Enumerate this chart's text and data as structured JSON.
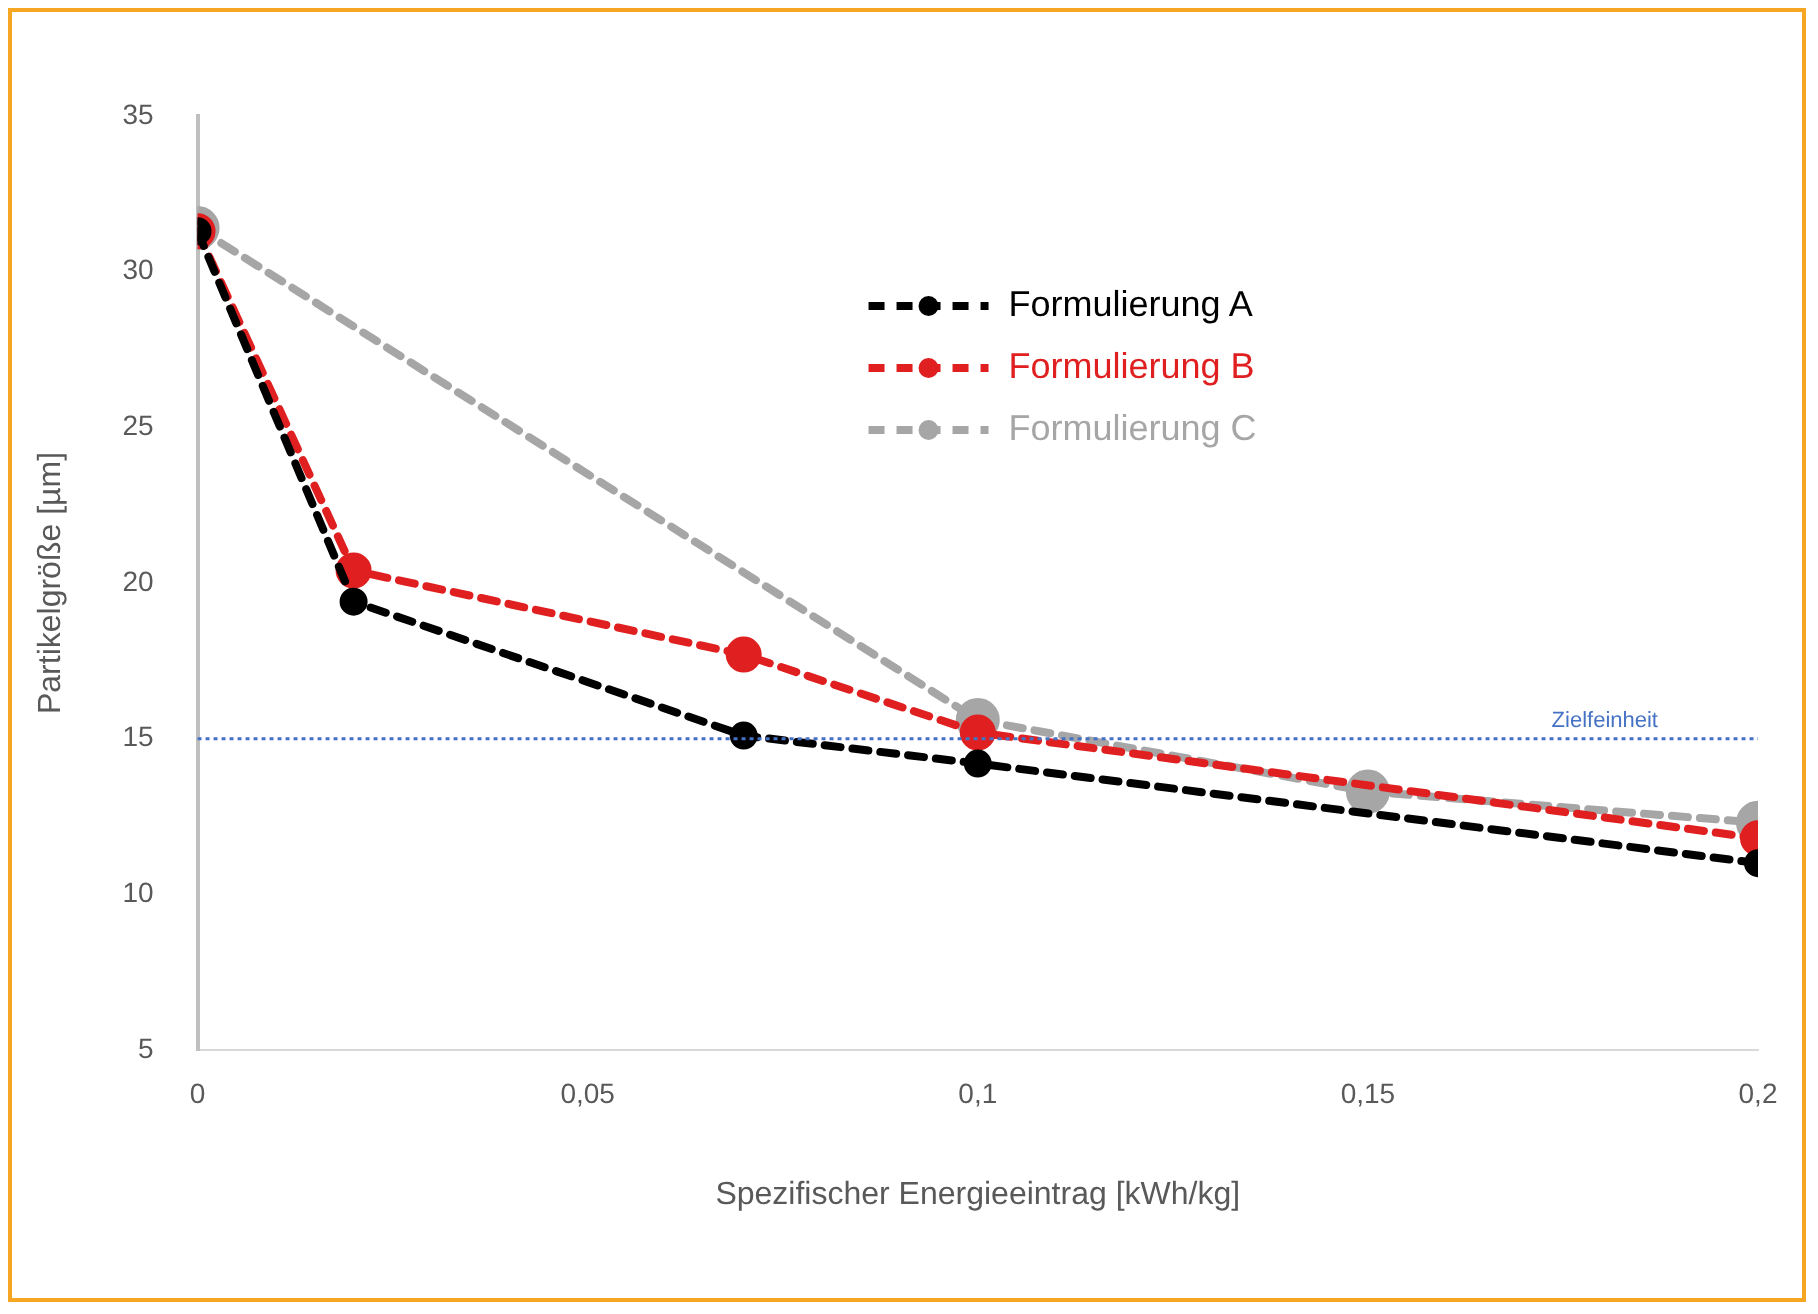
{
  "chart_data": {
    "type": "line",
    "xlabel": "Spezifischer Energieeintrag [kWh/kg]",
    "ylabel": "Partikelgröße [µm]",
    "xlim": [
      0,
      0.2
    ],
    "xticks": [
      0,
      {
        "value": 0.05,
        "label": "0,05"
      },
      {
        "value": 0.1,
        "label": "0,1"
      },
      {
        "value": 0.15,
        "label": "0,15"
      },
      {
        "value": 0.2,
        "label": "0,2"
      }
    ],
    "ylim": [
      5,
      35
    ],
    "yticks": [
      5,
      10,
      15,
      20,
      25,
      30,
      35
    ],
    "series": [
      {
        "name": "Formulierung A",
        "color": "#000000",
        "x": [
          0,
          0.02,
          0.07,
          0.1,
          0.2
        ],
        "values": [
          31.3,
          19.4,
          15.1,
          14.2,
          11.0
        ]
      },
      {
        "name": "Formulierung B",
        "color": "#e02020",
        "x": [
          0,
          0.02,
          0.07,
          0.1,
          0.2
        ],
        "values": [
          31.3,
          20.4,
          17.7,
          15.2,
          11.8
        ]
      },
      {
        "name": "Formulierung C",
        "color": "#a6a6a6",
        "x": [
          0,
          0.1,
          0.15,
          0.2
        ],
        "values": [
          31.4,
          15.6,
          13.3,
          12.3
        ]
      }
    ],
    "ref_lines": [
      {
        "axis": "y",
        "value": 15,
        "label": "Zielfeinheit",
        "color": "#4472c4",
        "line_style": "dotted"
      }
    ],
    "grid": false,
    "legend": "top right",
    "marker": "circle",
    "line_style": "dashed"
  }
}
